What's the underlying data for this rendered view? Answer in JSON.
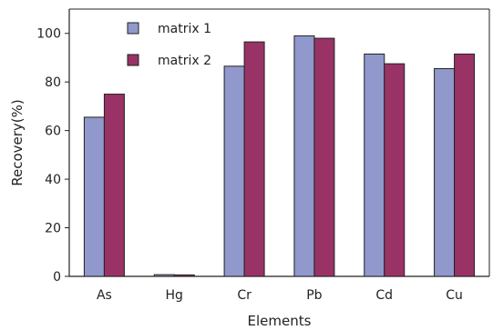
{
  "chart_data": {
    "type": "bar",
    "categories": [
      "As",
      "Hg",
      "Cr",
      "Pb",
      "Cd",
      "Cu"
    ],
    "series": [
      {
        "name": "matrix 1",
        "values": [
          65.5,
          0.7,
          86.5,
          99.0,
          91.5,
          85.5
        ],
        "color": "#9098cc"
      },
      {
        "name": "matrix 2",
        "values": [
          75.0,
          0.6,
          96.5,
          98.0,
          87.5,
          91.5
        ],
        "color": "#993366"
      }
    ],
    "xlabel": "Elements",
    "ylabel": "Recovery(%)",
    "ylim": [
      0,
      110
    ],
    "yticks": [
      0,
      20,
      40,
      60,
      80,
      100
    ],
    "grid": false,
    "legend_position": "top-left"
  }
}
